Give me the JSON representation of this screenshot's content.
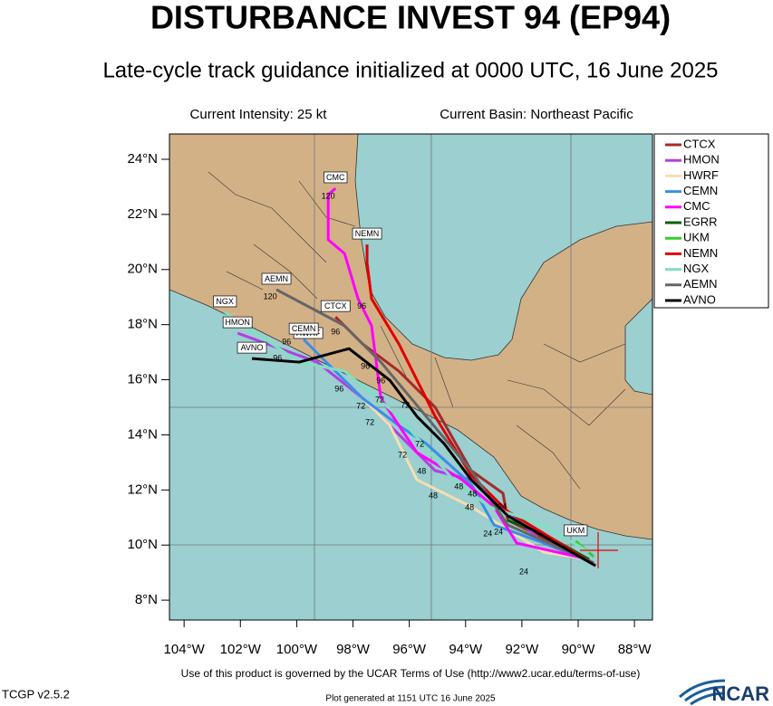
{
  "chart_data": {
    "type": "track",
    "title": "DISTURBANCE INVEST 94 (EP94)",
    "subtitle": "Late-cycle track guidance initialized at 0000 UTC, 16 June 2025",
    "intensity": "Current Intensity: 25 kt",
    "basin": "Current Basin: Northeast Pacific",
    "xlim": [
      -104.52,
      -87.36
    ],
    "ylim": [
      7.28,
      24.92
    ],
    "xticks": [
      {
        "value": -104,
        "label": "104°W"
      },
      {
        "value": -102,
        "label": "102°W"
      },
      {
        "value": -100,
        "label": "100°W"
      },
      {
        "value": -98,
        "label": "98°W"
      },
      {
        "value": -96,
        "label": "96°W"
      },
      {
        "value": -94,
        "label": "94°W"
      },
      {
        "value": -92,
        "label": "92°W"
      },
      {
        "value": -90,
        "label": "90°W"
      },
      {
        "value": -88,
        "label": "88°W"
      }
    ],
    "yticks": [
      {
        "value": 8,
        "label": "8°N"
      },
      {
        "value": 10,
        "label": "10°N"
      },
      {
        "value": 12,
        "label": "12°N"
      },
      {
        "value": 14,
        "label": "14°N"
      },
      {
        "value": 16,
        "label": "16°N"
      },
      {
        "value": 18,
        "label": "18°N"
      },
      {
        "value": 20,
        "label": "20°N"
      },
      {
        "value": 22,
        "label": "22°N"
      },
      {
        "value": 24,
        "label": "24°N"
      }
    ],
    "legend": "upper right",
    "series": [
      {
        "name": "CTCX",
        "color": "#a52a2a",
        "end_box": true,
        "x": [
          -89.45,
          -92.5,
          -92.67,
          -93.8,
          -95.08,
          -96.37,
          -97.66,
          -98.62
        ],
        "values": [
          9.35,
          10.9,
          11.88,
          12.7,
          15.0,
          16.31,
          17.3,
          18.28
        ]
      },
      {
        "name": "HMON",
        "color": "#b040e0",
        "end_box": true,
        "x": [
          -89.45,
          -91.22,
          -93.8,
          -95.08,
          -96.37,
          -97.66,
          -99.27,
          -102.1
        ],
        "values": [
          9.35,
          10.07,
          12.37,
          12.7,
          14.01,
          15.33,
          16.64,
          17.69
        ]
      },
      {
        "name": "HWRF",
        "color": "#f5deb3",
        "end_box": true,
        "x": [
          -89.61,
          -91.22,
          -93.8,
          -95.73,
          -96.69,
          -98.3,
          -99.59
        ],
        "values": [
          9.48,
          9.74,
          11.39,
          12.37,
          14.34,
          15.98,
          17.3
        ]
      },
      {
        "name": "CEMN",
        "color": "#3a8ee6",
        "end_box": true,
        "x": [
          -89.61,
          -92.99,
          -93.8,
          -95.4,
          -96.37,
          -97.66,
          -98.95,
          -99.75
        ],
        "values": [
          9.48,
          10.73,
          12.21,
          13.68,
          14.34,
          15.33,
          16.64,
          17.46
        ]
      },
      {
        "name": "CMC",
        "color": "#ff00ff",
        "end_box": true,
        "x": [
          -89.61,
          -92.18,
          -92.99,
          -94.12,
          -95.73,
          -97.01,
          -97.34,
          -97.82,
          -98.3,
          -98.88,
          -98.88,
          -98.62
        ],
        "values": [
          9.48,
          10.07,
          11.39,
          12.37,
          13.36,
          15.33,
          17.96,
          18.94,
          20.58,
          21.08,
          22.72,
          22.95
        ]
      },
      {
        "name": "EGRR",
        "color": "#0a5f0a",
        "end_box": false,
        "x": [
          -89.61,
          -91.22,
          -92.5
        ],
        "values": [
          9.48,
          10.4,
          10.9
        ]
      },
      {
        "name": "UKM",
        "color": "#33cc33",
        "end_box": true,
        "x": [
          -89.45,
          -90.09
        ],
        "values": [
          9.58,
          10.14
        ]
      },
      {
        "name": "NEMN",
        "color": "#e00000",
        "end_box": true,
        "x": [
          -89.61,
          -92.5,
          -93.8,
          -95.08,
          -96.37,
          -97.34,
          -97.5,
          -97.5
        ],
        "values": [
          9.41,
          11.22,
          12.53,
          14.67,
          17.3,
          18.94,
          20.25,
          20.91
        ]
      },
      {
        "name": "NGX",
        "color": "#80e0c0",
        "end_box": true,
        "x": [
          -89.61,
          -91.22,
          -93.15,
          -94.44,
          -96.37,
          -98.3,
          -99.91,
          -102.55
        ],
        "values": [
          9.74,
          10.73,
          11.39,
          12.37,
          14.67,
          16.31,
          16.64,
          18.45
        ]
      },
      {
        "name": "AEMN",
        "color": "#666666",
        "end_box": true,
        "x": [
          -89.45,
          -92.5,
          -93.8,
          -95.4,
          -97.01,
          -98.3,
          -100.72
        ],
        "values": [
          9.35,
          10.73,
          12.7,
          14.67,
          16.64,
          17.96,
          19.27
        ]
      },
      {
        "name": "AVNO",
        "color": "#000000",
        "end_box": true,
        "x": [
          -89.38,
          -92.5,
          -93.8,
          -94.76,
          -95.73,
          -96.69,
          -98.14,
          -99.91,
          -101.59
        ],
        "values": [
          9.25,
          11.06,
          12.37,
          13.68,
          14.67,
          15.98,
          17.13,
          16.64,
          16.77
        ]
      }
    ],
    "annotations": [
      {
        "text": "120",
        "x": -98.88,
        "y": 22.65
      },
      {
        "text": "120",
        "x": -100.94,
        "y": 19.0
      },
      {
        "text": "96",
        "x": -97.69,
        "y": 18.65
      },
      {
        "text": "96",
        "x": -98.62,
        "y": 17.73
      },
      {
        "text": "96",
        "x": -100.36,
        "y": 17.36
      },
      {
        "text": "96",
        "x": -100.68,
        "y": 16.77
      },
      {
        "text": "96",
        "x": -97.56,
        "y": 16.48
      },
      {
        "text": "96",
        "x": -98.49,
        "y": 15.66
      },
      {
        "text": "96",
        "x": -97.01,
        "y": 15.95
      },
      {
        "text": "72",
        "x": -97.05,
        "y": 15.26
      },
      {
        "text": "72",
        "x": -97.72,
        "y": 15.03
      },
      {
        "text": "72",
        "x": -97.4,
        "y": 14.44
      },
      {
        "text": "72",
        "x": -96.14,
        "y": 15.06
      },
      {
        "text": "72",
        "x": -96.24,
        "y": 13.26
      },
      {
        "text": "72",
        "x": -95.63,
        "y": 13.65
      },
      {
        "text": "48",
        "x": -95.56,
        "y": 12.67
      },
      {
        "text": "48",
        "x": -95.15,
        "y": 11.78
      },
      {
        "text": "48",
        "x": -94.24,
        "y": 12.11
      },
      {
        "text": "48",
        "x": -93.86,
        "y": 11.35
      },
      {
        "text": "48",
        "x": -93.76,
        "y": 11.85
      },
      {
        "text": "24",
        "x": -92.7,
        "y": 11.38
      },
      {
        "text": "24",
        "x": -93.21,
        "y": 10.4
      },
      {
        "text": "24",
        "x": -92.83,
        "y": 10.47
      },
      {
        "text": "24",
        "x": -91.93,
        "y": 9.02
      }
    ],
    "terms": "Use of this product is governed by the UCAR Terms of Use (http://www2.ucar.edu/terms-of-use)",
    "version": "TCGP v2.5.2",
    "generated": "Plot generated at 1151 UTC  16 June 2025",
    "logo": "NCAR"
  }
}
